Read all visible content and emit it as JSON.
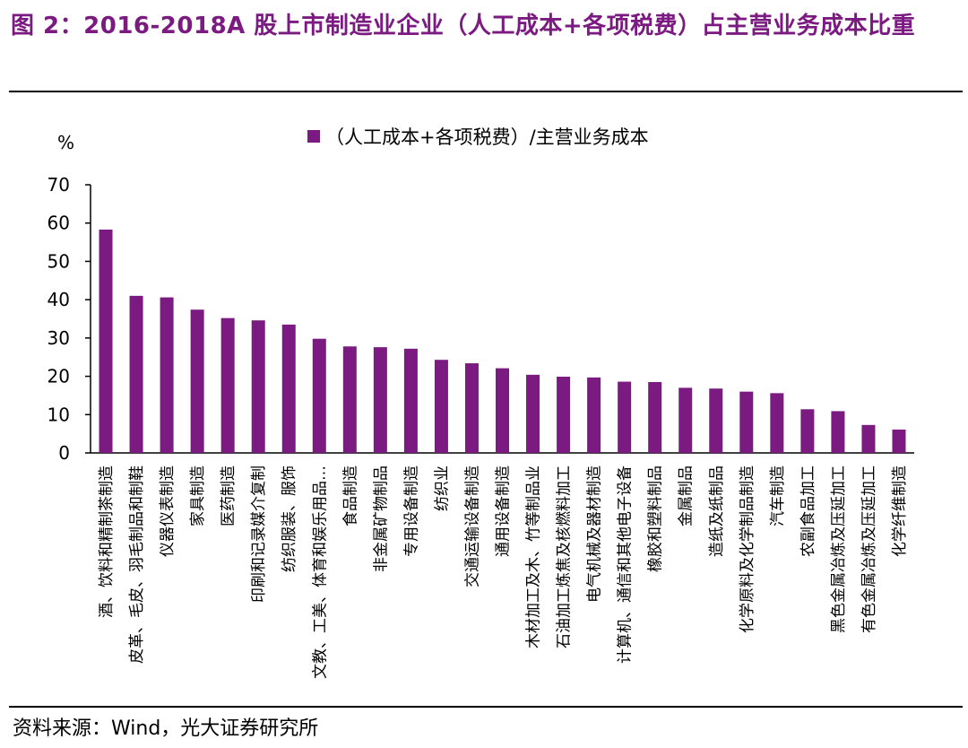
{
  "figure": {
    "title": "图 2：2016-2018A 股上市制造业企业（人工成本+各项税费）占主营业务成本比重",
    "source": "资料来源：Wind，光大证券研究所"
  },
  "colors": {
    "title": "#7b1a80",
    "bar": "#7b1a80",
    "axis": "#000000"
  },
  "chart_data": {
    "type": "bar",
    "ylabel": "%",
    "ylim": [
      0,
      70
    ],
    "yticks": [
      0,
      10,
      20,
      30,
      40,
      50,
      60,
      70
    ],
    "legend_position": "top",
    "grid": false,
    "categories": [
      "酒、饮料和精制茶制造",
      "皮革、毛皮、羽毛制品和制鞋",
      "仪器仪表制造",
      "家具制造",
      "医药制造",
      "印刷和记录媒介复制",
      "纺织服装、服饰",
      "文教、工美、体育和娱乐用品…",
      "食品制造",
      "非金属矿物制品",
      "专用设备制造",
      "纺织业",
      "交通运输设备制造",
      "通用设备制造",
      "木材加工及木、竹等制品业",
      "石油加工炼焦及核燃料加工",
      "电气机械及器材制造",
      "计算机、通信和其他电子设备",
      "橡胶和塑料制品",
      "金属制品",
      "造纸及纸制品",
      "化学原料及化学制品制造",
      "汽车制造",
      "农副食品加工",
      "黑色金属冶炼及压延加工",
      "有色金属冶炼及压延加工",
      "化学纤维制造"
    ],
    "series": [
      {
        "name": "（人工成本+各项税费）/主营业务成本",
        "values": [
          58.3,
          41.0,
          40.6,
          37.4,
          35.2,
          34.6,
          33.5,
          29.8,
          27.8,
          27.6,
          27.2,
          24.3,
          23.4,
          22.1,
          20.4,
          19.9,
          19.7,
          18.6,
          18.5,
          17.0,
          16.8,
          16.0,
          15.6,
          11.4,
          10.9,
          7.3,
          6.1
        ]
      }
    ]
  }
}
